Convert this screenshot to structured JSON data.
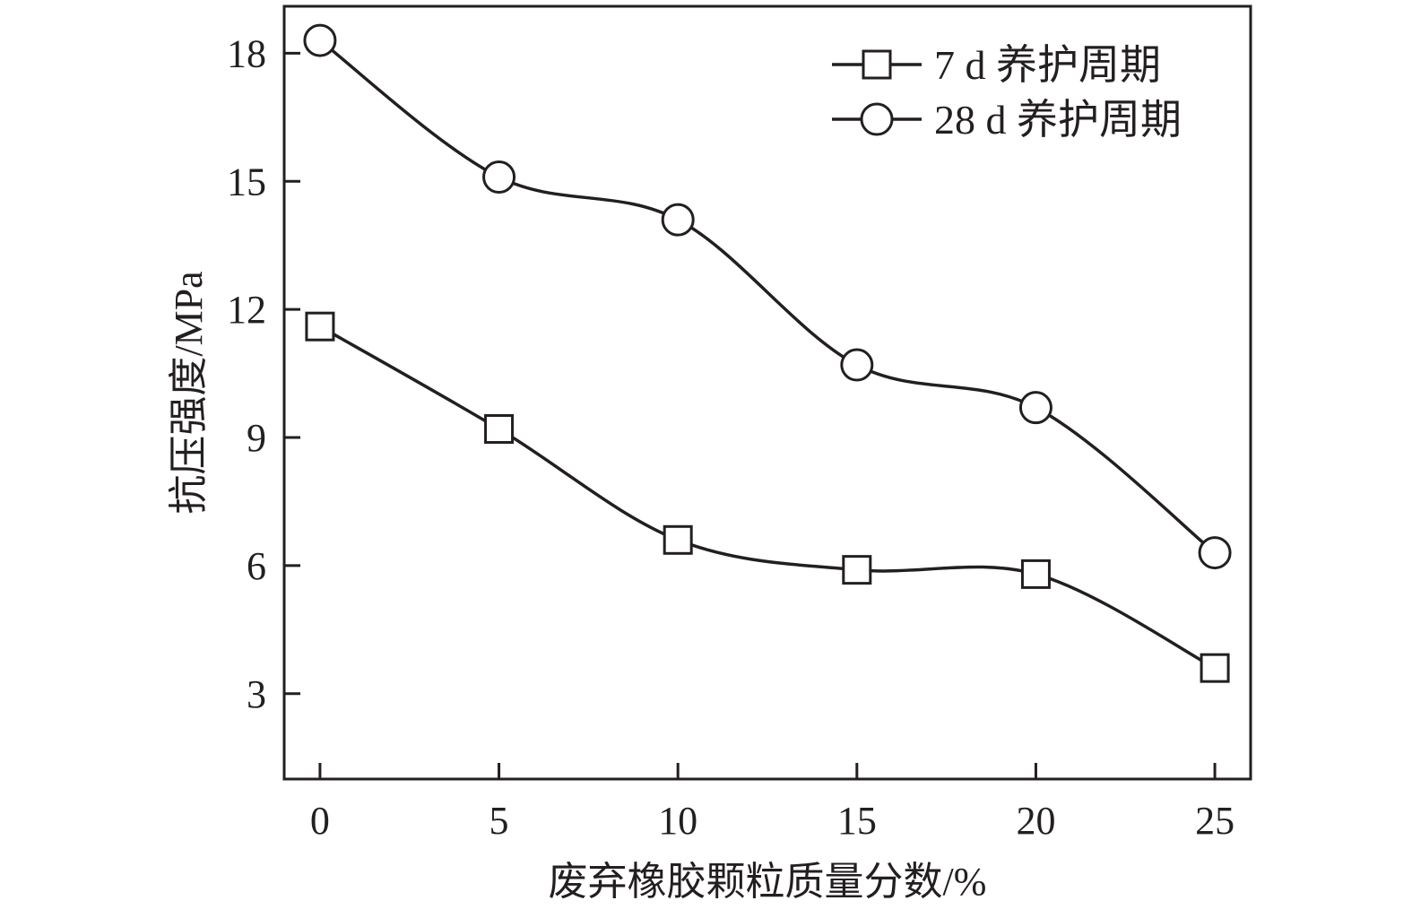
{
  "chart_data": {
    "type": "line",
    "xlabel": "废弃橡胶颗粒质量分数/%",
    "ylabel": "抗压强度/MPa",
    "x": [
      0,
      5,
      10,
      15,
      20,
      25
    ],
    "x_ticks": [
      "0",
      "5",
      "10",
      "15",
      "20",
      "25"
    ],
    "y_ticks": [
      "3",
      "6",
      "9",
      "12",
      "15",
      "18"
    ],
    "xlim": [
      -1,
      26
    ],
    "ylim": [
      1,
      19.1
    ],
    "grid": false,
    "legend_position": "top-right",
    "line_style": "smooth",
    "colors": {
      "line": "#231f20",
      "marker_fill": "#ffffff"
    },
    "series": [
      {
        "name": "7 d 养护周期",
        "marker": "square",
        "values": [
          11.6,
          9.2,
          6.6,
          5.9,
          5.8,
          3.6
        ]
      },
      {
        "name": "28 d 养护周期",
        "marker": "circle",
        "values": [
          18.3,
          15.1,
          14.1,
          10.7,
          9.7,
          6.3
        ]
      }
    ]
  }
}
